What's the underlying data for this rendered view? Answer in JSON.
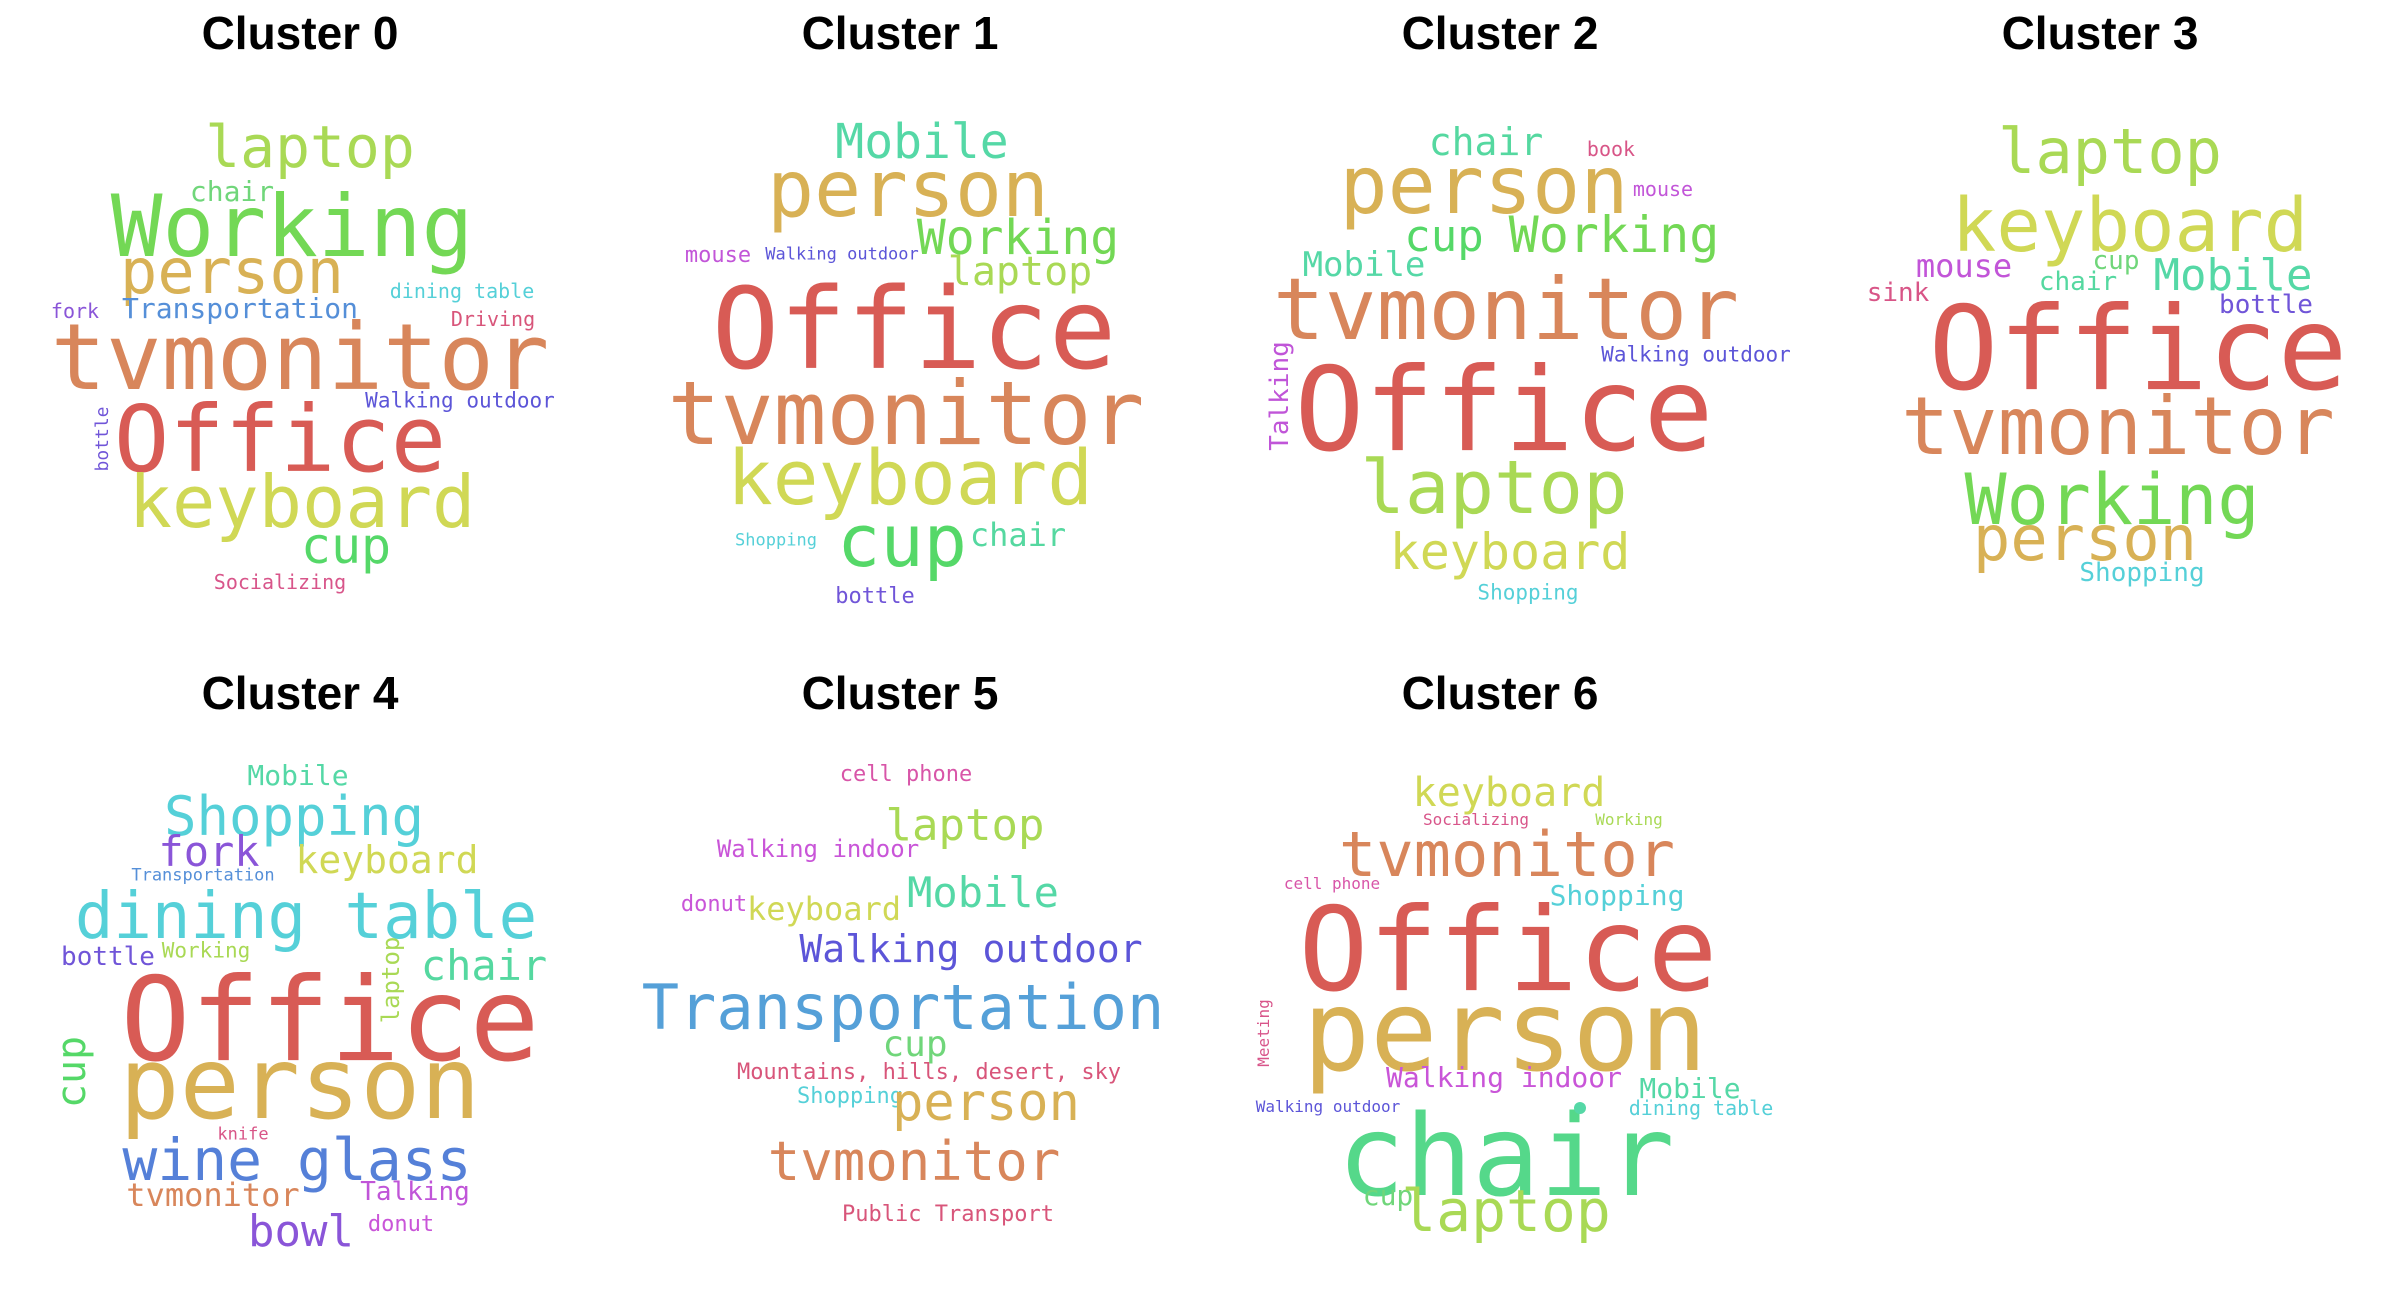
{
  "clusters": [
    {
      "title": "Cluster 0",
      "words": [
        {
          "text": "laptop",
          "color": "#a9d955",
          "size": 58
        },
        {
          "text": "chair",
          "color": "#70d67a",
          "size": 28
        },
        {
          "text": "Working",
          "color": "#73d855",
          "size": 86
        },
        {
          "text": "person",
          "color": "#d8b155",
          "size": 62
        },
        {
          "text": "dining table",
          "color": "#55d0d8",
          "size": 20
        },
        {
          "text": "fork",
          "color": "#8a55d8",
          "size": 20
        },
        {
          "text": "Transportation",
          "color": "#558fd8",
          "size": 28
        },
        {
          "text": "Driving",
          "color": "#d8557a",
          "size": 20
        },
        {
          "text": "tvmonitor",
          "color": "#d8865b",
          "size": 92
        },
        {
          "text": "Walking outdoor",
          "color": "#5c55d8",
          "size": 21
        },
        {
          "text": "bottle",
          "color": "#7055d8",
          "size": 18
        },
        {
          "text": "Office",
          "color": "#d85b55",
          "size": 92
        },
        {
          "text": "keyboard",
          "color": "#d0d855",
          "size": 72
        },
        {
          "text": "cup",
          "color": "#55d868",
          "size": 50
        },
        {
          "text": "Socializing",
          "color": "#d8558a",
          "size": 20
        }
      ]
    },
    {
      "title": "Cluster 1",
      "words": [
        {
          "text": "Mobile",
          "color": "#55d8a6",
          "size": 48
        },
        {
          "text": "person",
          "color": "#d8b155",
          "size": 78
        },
        {
          "text": "Working",
          "color": "#73d855",
          "size": 48
        },
        {
          "text": "mouse",
          "color": "#c255d8",
          "size": 22
        },
        {
          "text": "Walking outdoor",
          "color": "#5c55d8",
          "size": 17
        },
        {
          "text": "laptop",
          "color": "#a9d955",
          "size": 40
        },
        {
          "text": "Office",
          "color": "#d85b55",
          "size": 112
        },
        {
          "text": "tvmonitor",
          "color": "#d8865b",
          "size": 88
        },
        {
          "text": "keyboard",
          "color": "#d0d855",
          "size": 76
        },
        {
          "text": "Shopping",
          "color": "#55d0d8",
          "size": 17
        },
        {
          "text": "cup",
          "color": "#55d868",
          "size": 72
        },
        {
          "text": "chair",
          "color": "#55d8a0",
          "size": 32
        },
        {
          "text": "bottle",
          "color": "#7055d8",
          "size": 22
        }
      ]
    },
    {
      "title": "Cluster 2",
      "words": [
        {
          "text": "chair",
          "color": "#55d8a0",
          "size": 38
        },
        {
          "text": "book",
          "color": "#d85587",
          "size": 20
        },
        {
          "text": "person",
          "color": "#d8b155",
          "size": 80
        },
        {
          "text": "mouse",
          "color": "#c255d8",
          "size": 20
        },
        {
          "text": "cup",
          "color": "#55d868",
          "size": 44
        },
        {
          "text": "Working",
          "color": "#73d855",
          "size": 50
        },
        {
          "text": "Mobile",
          "color": "#55d8a6",
          "size": 34
        },
        {
          "text": "tvmonitor",
          "color": "#d8865b",
          "size": 86
        },
        {
          "text": "Walking outdoor",
          "color": "#5c55d8",
          "size": 21
        },
        {
          "text": "Talking",
          "color": "#c055d8",
          "size": 26
        },
        {
          "text": "Office",
          "color": "#d85b55",
          "size": 116
        },
        {
          "text": "laptop",
          "color": "#a9d955",
          "size": 74
        },
        {
          "text": "keyboard",
          "color": "#d0d855",
          "size": 50
        },
        {
          "text": "Shopping",
          "color": "#55d0d8",
          "size": 21
        }
      ]
    },
    {
      "title": "Cluster 3",
      "words": [
        {
          "text": "laptop",
          "color": "#a9d955",
          "size": 62
        },
        {
          "text": "keyboard",
          "color": "#d0d855",
          "size": 74
        },
        {
          "text": "mouse",
          "color": "#c255d8",
          "size": 32
        },
        {
          "text": "cup",
          "color": "#70d67a",
          "size": 26
        },
        {
          "text": "sink",
          "color": "#d85587",
          "size": 26
        },
        {
          "text": "chair",
          "color": "#55d8a0",
          "size": 26
        },
        {
          "text": "Mobile",
          "color": "#55d8a6",
          "size": 44
        },
        {
          "text": "bottle",
          "color": "#7055d8",
          "size": 26
        },
        {
          "text": "Office",
          "color": "#d85b55",
          "size": 116
        },
        {
          "text": "tvmonitor",
          "color": "#d8865b",
          "size": 80
        },
        {
          "text": "Working",
          "color": "#73d855",
          "size": 70
        },
        {
          "text": "person",
          "color": "#d8b155",
          "size": 62
        },
        {
          "text": "Shopping",
          "color": "#55d0d8",
          "size": 26
        }
      ]
    },
    {
      "title": "Cluster 4",
      "words": [
        {
          "text": "Mobile",
          "color": "#55d8a6",
          "size": 28
        },
        {
          "text": "Shopping",
          "color": "#55d0d8",
          "size": 54
        },
        {
          "text": "fork",
          "color": "#8a55d8",
          "size": 42
        },
        {
          "text": "keyboard",
          "color": "#d0d855",
          "size": 38
        },
        {
          "text": "Transportation",
          "color": "#558fd8",
          "size": 17
        },
        {
          "text": "dining table",
          "color": "#55d0d8",
          "size": 64
        },
        {
          "text": "bottle",
          "color": "#7055d8",
          "size": 26
        },
        {
          "text": "Working",
          "color": "#a9d955",
          "size": 21
        },
        {
          "text": "laptop",
          "color": "#a9d955",
          "size": 24
        },
        {
          "text": "chair",
          "color": "#55d8a0",
          "size": 42
        },
        {
          "text": "Office",
          "color": "#d85b55",
          "size": 116
        },
        {
          "text": "cup",
          "color": "#55d868",
          "size": 40
        },
        {
          "text": "person",
          "color": "#d8b155",
          "size": 100
        },
        {
          "text": "knife",
          "color": "#d85587",
          "size": 17
        },
        {
          "text": "wine glass",
          "color": "#5580d8",
          "size": 58
        },
        {
          "text": "tvmonitor",
          "color": "#d8865b",
          "size": 32
        },
        {
          "text": "Talking",
          "color": "#c055d8",
          "size": 26
        },
        {
          "text": "bowl",
          "color": "#8a55d8",
          "size": 44
        },
        {
          "text": "donut",
          "color": "#c955d8",
          "size": 22
        }
      ]
    },
    {
      "title": "Cluster 5",
      "words": [
        {
          "text": "cell phone",
          "color": "#d855a8",
          "size": 22
        },
        {
          "text": "laptop",
          "color": "#a9d955",
          "size": 44
        },
        {
          "text": "Walking indoor",
          "color": "#c955d8",
          "size": 24
        },
        {
          "text": "donut",
          "color": "#c955d8",
          "size": 22
        },
        {
          "text": "keyboard",
          "color": "#d0d855",
          "size": 32
        },
        {
          "text": "Mobile",
          "color": "#55d8a6",
          "size": 42
        },
        {
          "text": "Walking outdoor",
          "color": "#5c55d8",
          "size": 38
        },
        {
          "text": "Transportation",
          "color": "#55a0d8",
          "size": 62
        },
        {
          "text": "cup",
          "color": "#70d67a",
          "size": 36
        },
        {
          "text": "Mountains, hills, desert, sky",
          "color": "#d8557a",
          "size": 22
        },
        {
          "text": "Shopping",
          "color": "#55d0d8",
          "size": 22
        },
        {
          "text": "person",
          "color": "#d8b155",
          "size": 52
        },
        {
          "text": "tvmonitor",
          "color": "#d8865b",
          "size": 54
        },
        {
          "text": "Public Transport",
          "color": "#d8557a",
          "size": 22
        }
      ]
    },
    {
      "title": "Cluster 6",
      "words": [
        {
          "text": "keyboard",
          "color": "#d0d855",
          "size": 40
        },
        {
          "text": "Socializing",
          "color": "#d8558a",
          "size": 16
        },
        {
          "text": "Working",
          "color": "#a9d955",
          "size": 16
        },
        {
          "text": "tvmonitor",
          "color": "#d8865b",
          "size": 62
        },
        {
          "text": "cell phone",
          "color": "#d855a8",
          "size": 16
        },
        {
          "text": "Shopping",
          "color": "#55d0d8",
          "size": 28
        },
        {
          "text": "Office",
          "color": "#d85b55",
          "size": 116
        },
        {
          "text": "Meeting",
          "color": "#d8558a",
          "size": 16
        },
        {
          "text": "person",
          "color": "#d8b155",
          "size": 112
        },
        {
          "text": "Walking indoor",
          "color": "#c955d8",
          "size": 28
        },
        {
          "text": "Mobile",
          "color": "#55d8a6",
          "size": 28
        },
        {
          "text": "dining table",
          "color": "#55d0d8",
          "size": 20
        },
        {
          "text": "Walking outdoor",
          "color": "#5c55d8",
          "size": 16
        },
        {
          "text": "chair",
          "color": "#55d88a",
          "size": 112
        },
        {
          "text": "cup",
          "color": "#70d67a",
          "size": 28
        },
        {
          "text": "laptop",
          "color": "#a9d955",
          "size": 58
        }
      ]
    }
  ]
}
